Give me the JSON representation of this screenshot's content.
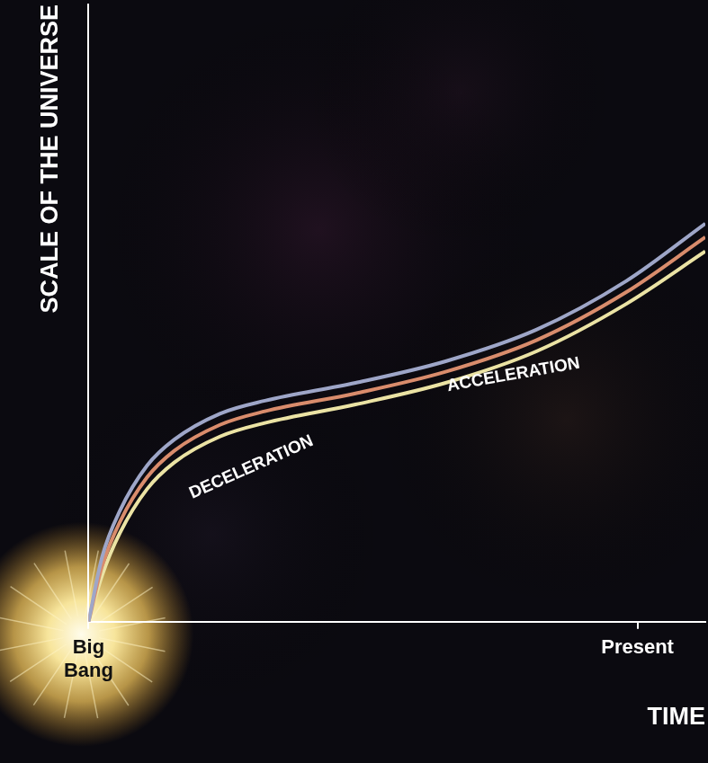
{
  "chart_data": {
    "type": "line",
    "x_label": "TIME",
    "y_label": "SCALE OF THE UNIVERSE",
    "x": [
      0,
      0.22,
      0.51,
      0.95,
      1.39,
      2.13,
      2.86,
      4.33,
      5.79,
      7.26,
      8.72,
      10
    ],
    "series": [
      {
        "color": "#9ea6c8",
        "values": [
          0,
          1.05,
          1.8,
          2.53,
          2.95,
          3.37,
          3.58,
          3.87,
          4.22,
          4.73,
          5.52,
          6.45
        ]
      },
      {
        "color": "#d98c6c",
        "values": [
          0,
          0.9,
          1.62,
          2.34,
          2.77,
          3.19,
          3.41,
          3.7,
          4.05,
          4.56,
          5.34,
          6.23
        ]
      },
      {
        "color": "#ebe3a4",
        "values": [
          0,
          0.75,
          1.44,
          2.15,
          2.58,
          3.0,
          3.22,
          3.52,
          3.87,
          4.38,
          5.15,
          6.0
        ]
      }
    ],
    "xlim": [
      0,
      10
    ],
    "ylim": [
      0,
      10
    ],
    "xticks": [
      {
        "value": 0,
        "label": "Big Bang"
      },
      {
        "value": 8.9,
        "label": "Present"
      }
    ],
    "yticks": [],
    "tick_labels": "x",
    "grid": false,
    "annotations": [
      "DECELERATION",
      "ACCELERATION"
    ]
  }
}
